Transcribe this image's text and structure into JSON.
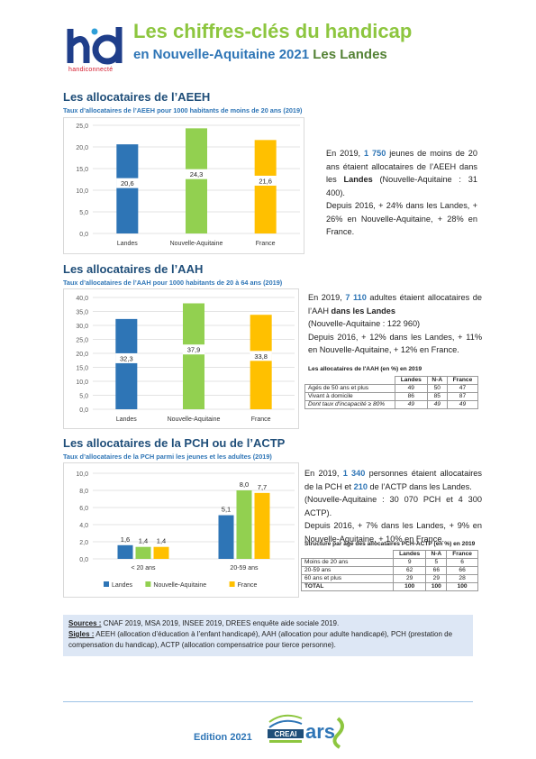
{
  "header": {
    "logo_caption": "handiconnecté",
    "title": "Les chiffres-clés du handicap",
    "subtitle_region": "en Nouvelle-Aquitaine 2021",
    "subtitle_dept": "Les Landes"
  },
  "colors": {
    "landes": "#2e75b6",
    "na": "#92d050",
    "france": "#ffc000"
  },
  "aeeh": {
    "title": "Les allocataires de l’AEEH",
    "subtitle": "Taux d’allocataires de l’AEEH pour 1000 habitants de moins de 20 ans (2019)",
    "text": {
      "p1_a": "En 2019, ",
      "p1_num": "1 750",
      "p1_b": " jeunes de moins de 20 ans étaient allocataires de l’AEEH dans les ",
      "p1_dept": "Landes",
      "p1_c": " (Nouvelle-Aquitaine : 31 400).",
      "p2": "Depuis 2016, + 24% dans les Landes, + 26% en Nouvelle-Aquitaine, + 28% en France."
    }
  },
  "aah": {
    "title": "Les allocataires de l’AAH",
    "subtitle": "Taux d’allocataires de l’AAH pour 1000 habitants de 20 à 64 ans (2019)",
    "text": {
      "p1_a": "En 2019, ",
      "p1_num": "7 110",
      "p1_b": " adultes étaient allocataires de l’AAH ",
      "p1_dept": "dans les Landes",
      "p1_c": "(Nouvelle-Aquitaine : 122 960)",
      "p2": "Depuis 2016, + 12% dans les Landes, + 11% en Nouvelle-Aquitaine, + 12% en France."
    },
    "table": {
      "title": "Les allocataires de l'AAH (en %) en 2019",
      "headers": [
        "",
        "Landes",
        "N-A",
        "France"
      ],
      "rows": [
        [
          "Agés de 50 ans et plus",
          "49",
          "50",
          "47"
        ],
        [
          "Vivant à domicile",
          "86",
          "85",
          "87"
        ],
        [
          "Dont taux d'incapacité ≥ 80%",
          "49",
          "49",
          "49"
        ]
      ]
    }
  },
  "pch": {
    "title": "Les allocataires de la PCH ou de l’ACTP",
    "subtitle": "Taux d’allocataires de la PCH parmi les jeunes et les adultes (2019)",
    "text": {
      "p1_a": "En 2019, ",
      "p1_num1": "1 340",
      "p1_b": " personnes étaient allocataires de la PCH et ",
      "p1_num2": "210",
      "p1_c": " de l’ACTP dans les Landes.",
      "p2": "(Nouvelle-Aquitaine : 30 070 PCH et 4 300 ACTP).",
      "p3": "Depuis 2016, + 7% dans les Landes, + 9% en Nouvelle-Aquitaine, + 10% en France."
    },
    "table": {
      "title": "Structure par âge des allocataires PCH-ACTP (en %) en 2019",
      "headers": [
        "",
        "Landes",
        "N-A",
        "France"
      ],
      "rows": [
        [
          "Moins de 20 ans",
          "9",
          "5",
          "6"
        ],
        [
          "20-59 ans",
          "62",
          "66",
          "66"
        ],
        [
          "60 ans et plus",
          "29",
          "29",
          "28"
        ],
        [
          "TOTAL",
          "100",
          "100",
          "100"
        ]
      ]
    }
  },
  "chart_data": [
    {
      "type": "bar",
      "categories": [
        "Landes",
        "Nouvelle-Aquitaine",
        "France"
      ],
      "values": [
        20.6,
        24.3,
        21.6
      ],
      "value_labels": [
        "20,6",
        "24,3",
        "21,6"
      ],
      "yticks": [
        "0,0",
        "5,0",
        "10,0",
        "15,0",
        "20,0",
        "25,0"
      ],
      "ylim": [
        0,
        25
      ],
      "grid": true
    },
    {
      "type": "bar",
      "categories": [
        "Landes",
        "Nouvelle-Aquitaine",
        "France"
      ],
      "values": [
        32.3,
        37.9,
        33.8
      ],
      "value_labels": [
        "32,3",
        "37,9",
        "33,8"
      ],
      "yticks": [
        "0,0",
        "5,0",
        "10,0",
        "15,0",
        "20,0",
        "25,0",
        "30,0",
        "35,0",
        "40,0"
      ],
      "ylim": [
        0,
        40
      ],
      "grid": true
    },
    {
      "type": "bar",
      "categories": [
        "< 20 ans",
        "20-59 ans"
      ],
      "series": [
        {
          "name": "Landes",
          "values": [
            1.6,
            5.1
          ],
          "value_labels": [
            "1,6",
            "5,1"
          ]
        },
        {
          "name": "Nouvelle-Aquitaine",
          "values": [
            1.4,
            8.0
          ],
          "value_labels": [
            "1,4",
            "8,0"
          ]
        },
        {
          "name": "France",
          "values": [
            1.4,
            7.7
          ],
          "value_labels": [
            "1,4",
            "7,7"
          ]
        }
      ],
      "yticks": [
        "0,0",
        "2,0",
        "4,0",
        "6,0",
        "8,0",
        "10,0"
      ],
      "ylim": [
        0,
        10
      ],
      "grid": true,
      "legend": "bottom"
    }
  ],
  "footer": {
    "sources_label": "Sources :",
    "sources_text": " CNAF 2019, MSA 2019, INSEE 2019, DREES enquête aide sociale 2019.",
    "sigles_label": "Sigles :",
    "sigles_text": " AEEH (allocation d’éducation à l’enfant handicapé), AAH (allocation pour adulte handicapé), PCH (prestation de compensation du handicap), ACTP (allocation compensatrice pour tierce personne).",
    "edition": "Edition 2021",
    "creai_label": "CREAI",
    "ars_label": "ars"
  }
}
